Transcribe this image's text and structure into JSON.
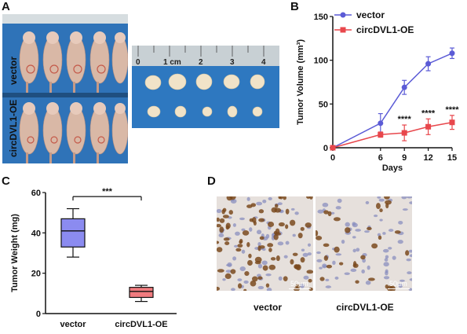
{
  "panels": {
    "a": {
      "letter": "A",
      "row_labels": [
        "vector",
        "circDVL1-OE"
      ],
      "ruler_labels": [
        "0",
        "1 cm",
        "2",
        "3",
        "4"
      ]
    },
    "b": {
      "letter": "B"
    },
    "c": {
      "letter": "C"
    },
    "d": {
      "letter": "D",
      "captions": [
        "vector",
        "circDVL1-OE"
      ],
      "scale_bar": "50μm"
    }
  },
  "chart_data": [
    {
      "type": "line",
      "panel": "B",
      "ylabel": "Tumor Volume (mm³)",
      "xlabel": "Days",
      "x": [
        0,
        6,
        9,
        12,
        15
      ],
      "xticks": [
        "0",
        "6",
        "9",
        "12",
        "15"
      ],
      "yticks": [
        "0",
        "50",
        "100",
        "150"
      ],
      "ylim": [
        0,
        150
      ],
      "xlim": [
        0,
        15
      ],
      "legend_position": "top-left",
      "series": [
        {
          "name": "vector",
          "color": "#5b5bd6",
          "marker": "circle",
          "values": [
            0,
            28,
            69,
            96,
            108
          ],
          "errors": [
            0,
            11,
            8,
            8,
            6
          ]
        },
        {
          "name": "circDVL1-OE",
          "color": "#e8474c",
          "marker": "square",
          "values": [
            0,
            15,
            17,
            24,
            29
          ],
          "errors": [
            0,
            3,
            9,
            9,
            8
          ]
        }
      ],
      "annotations": [
        "****",
        "****",
        "****"
      ]
    },
    {
      "type": "box",
      "panel": "C",
      "ylabel": "Tumor Weight (mg)",
      "categories": [
        "vector",
        "circDVL1-OE"
      ],
      "yticks": [
        "0",
        "20",
        "40",
        "60"
      ],
      "ylim": [
        0,
        60
      ],
      "boxes": [
        {
          "name": "vector",
          "color": "#8b8bf0",
          "min": 28,
          "q1": 33,
          "median": 41,
          "q3": 47,
          "max": 52
        },
        {
          "name": "circDVL1-OE",
          "color": "#f07b7f",
          "min": 6,
          "q1": 8,
          "median": 11,
          "q3": 13,
          "max": 14
        }
      ],
      "significance": "***"
    }
  ]
}
